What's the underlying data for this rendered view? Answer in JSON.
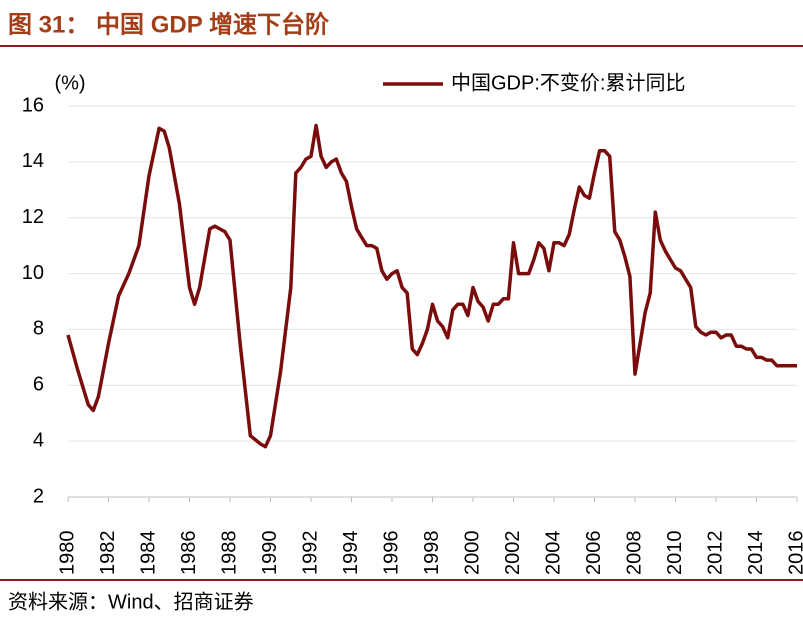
{
  "chart_data": {
    "type": "line",
    "title": "图 31： 中国 GDP 增速下台阶",
    "source": "资料来源：Wind、招商证券",
    "y_label": "(%)",
    "x": [
      1980,
      1980.5,
      1981,
      1981.25,
      1981.5,
      1982,
      1982.5,
      1983,
      1983.5,
      1984,
      1984.5,
      1984.75,
      1985,
      1985.5,
      1986,
      1986.25,
      1986.5,
      1987,
      1987.25,
      1987.75,
      1988,
      1988.5,
      1989,
      1989.5,
      1989.75,
      1990,
      1990.5,
      1991,
      1991.25,
      1991.5,
      1991.75,
      1992,
      1992.25,
      1992.5,
      1992.75,
      1993,
      1993.25,
      1993.5,
      1993.75,
      1994,
      1994.25,
      1994.5,
      1994.75,
      1995,
      1995.25,
      1995.5,
      1995.75,
      1996,
      1996.25,
      1996.5,
      1996.75,
      1997,
      1997.25,
      1997.5,
      1997.75,
      1998,
      1998.25,
      1998.5,
      1998.75,
      1999,
      1999.25,
      1999.5,
      1999.75,
      2000,
      2000.25,
      2000.5,
      2000.75,
      2001,
      2001.25,
      2001.5,
      2001.75,
      2002,
      2002.25,
      2002.5,
      2002.75,
      2003,
      2003.25,
      2003.5,
      2003.75,
      2004,
      2004.25,
      2004.5,
      2004.75,
      2005,
      2005.25,
      2005.5,
      2005.75,
      2006,
      2006.25,
      2006.5,
      2006.75,
      2007,
      2007.25,
      2007.5,
      2007.75,
      2008,
      2008.25,
      2008.5,
      2008.75,
      2009,
      2009.25,
      2009.5,
      2009.75,
      2010,
      2010.25,
      2010.5,
      2010.75,
      2011,
      2011.25,
      2011.5,
      2011.75,
      2012,
      2012.25,
      2012.5,
      2012.75,
      2013,
      2013.25,
      2013.5,
      2013.75,
      2014,
      2014.25,
      2014.5,
      2014.75,
      2015,
      2015.25,
      2015.5,
      2015.75,
      2016
    ],
    "series": [
      {
        "name": "中国GDP:不变价:累计同比",
        "color": "#7b0c0c",
        "values": [
          7.8,
          6.5,
          5.3,
          5.1,
          5.6,
          7.5,
          9.2,
          10.0,
          11.0,
          13.5,
          15.2,
          15.1,
          14.5,
          12.5,
          9.5,
          8.9,
          9.5,
          11.6,
          11.7,
          11.5,
          11.2,
          7.5,
          4.2,
          3.9,
          3.8,
          4.2,
          6.5,
          9.5,
          13.6,
          13.8,
          14.1,
          14.2,
          15.3,
          14.2,
          13.8,
          14.0,
          14.1,
          13.6,
          13.3,
          12.4,
          11.6,
          11.3,
          11.0,
          11.0,
          10.9,
          10.1,
          9.8,
          10.0,
          10.1,
          9.5,
          9.3,
          7.3,
          7.1,
          7.5,
          8.0,
          8.9,
          8.3,
          8.1,
          7.7,
          8.7,
          8.9,
          8.9,
          8.5,
          9.5,
          9.0,
          8.8,
          8.3,
          8.9,
          8.9,
          9.1,
          9.1,
          11.1,
          10.0,
          10.0,
          10.0,
          10.5,
          11.1,
          10.9,
          10.1,
          11.1,
          11.1,
          11.0,
          11.4,
          12.3,
          13.1,
          12.8,
          12.7,
          13.6,
          14.4,
          14.4,
          14.2,
          11.5,
          11.2,
          10.6,
          9.9,
          6.4,
          7.5,
          8.6,
          9.3,
          12.2,
          11.2,
          10.8,
          10.5,
          10.2,
          10.1,
          9.8,
          9.5,
          8.1,
          7.9,
          7.8,
          7.9,
          7.9,
          7.7,
          7.8,
          7.8,
          7.4,
          7.4,
          7.3,
          7.3,
          7.0,
          7.0,
          6.9,
          6.9,
          6.7,
          6.7,
          6.7,
          6.7,
          6.7
        ]
      }
    ],
    "xlim": [
      1980,
      2016
    ],
    "xticks": [
      1980,
      1982,
      1984,
      1986,
      1988,
      1990,
      1992,
      1994,
      1996,
      1998,
      2000,
      2002,
      2004,
      2006,
      2008,
      2010,
      2012,
      2014,
      2016
    ],
    "ylim": [
      2,
      16
    ],
    "yticks": [
      2,
      4,
      6,
      8,
      10,
      12,
      14,
      16
    ],
    "grid": true
  }
}
